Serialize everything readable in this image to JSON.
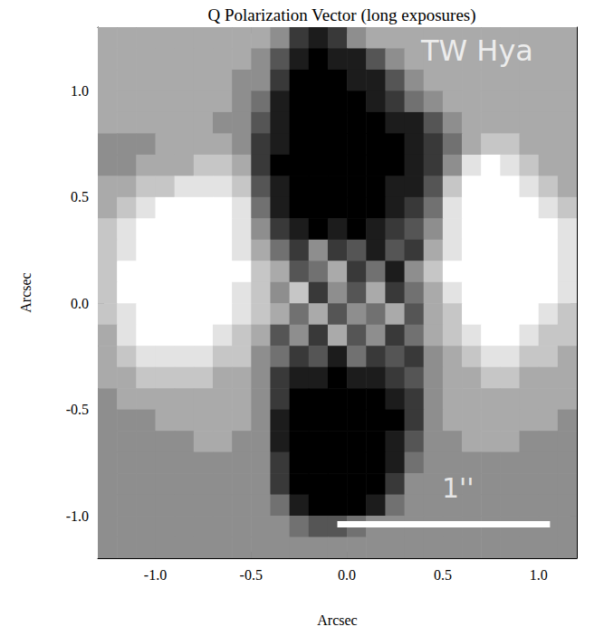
{
  "chart_data": {
    "type": "heatmap",
    "title": "Q Polarization Vector (long exposures)",
    "x_label": "Arcsec",
    "y_label": "Arcsec",
    "xlim": [
      -1.3,
      1.2
    ],
    "ylim": [
      -1.2,
      1.3
    ],
    "xticks": [
      {
        "value": -1,
        "label": "-1.0"
      },
      {
        "value": -0.5,
        "label": "-0.5"
      },
      {
        "value": 0,
        "label": "0.0"
      },
      {
        "value": 0.5,
        "label": "0.5"
      },
      {
        "value": 1,
        "label": "1.0"
      }
    ],
    "yticks": [
      {
        "value": -1,
        "label": "-1.0"
      },
      {
        "value": -0.5,
        "label": "-0.5"
      },
      {
        "value": 0,
        "label": "0.0"
      },
      {
        "value": 0.5,
        "label": "0.5"
      },
      {
        "value": 1,
        "label": "1.0"
      }
    ],
    "annotations": [
      {
        "text": "TW Hya",
        "x": 0.68,
        "y": 1.19
      },
      {
        "text": "1''",
        "x": 0.58,
        "y": -0.87
      }
    ],
    "scale_bar": {
      "x": [
        -0.05,
        1.06
      ],
      "y": -1.04
    },
    "color_range": [
      0,
      9
    ],
    "x": [
      -1.25,
      -1.15,
      -1.05,
      -0.95,
      -0.85,
      -0.75,
      -0.65,
      -0.55,
      -0.45,
      -0.35,
      -0.25,
      -0.15,
      -0.05,
      0.05,
      0.15,
      0.25,
      0.35,
      0.45,
      0.55,
      0.65,
      0.75,
      0.85,
      0.95,
      1.05,
      1.15
    ],
    "y": [
      1.25,
      1.15,
      1.05,
      0.95,
      0.85,
      0.75,
      0.65,
      0.55,
      0.45,
      0.35,
      0.25,
      0.15,
      0.05,
      -0.05,
      -0.15,
      -0.25,
      -0.35,
      -0.45,
      -0.55,
      -0.65,
      -0.75,
      -0.85,
      -0.95,
      -1.05,
      -1.15
    ],
    "cells": [
      [
        6,
        6,
        6,
        6,
        6,
        6,
        6,
        6,
        6,
        5,
        2,
        1,
        2,
        5,
        6,
        6,
        6,
        6,
        6,
        6,
        6,
        6,
        6,
        6,
        6
      ],
      [
        6,
        6,
        6,
        6,
        6,
        6,
        6,
        6,
        5,
        3,
        1,
        0,
        1,
        1,
        3,
        5,
        6,
        6,
        6,
        6,
        6,
        6,
        6,
        6,
        6
      ],
      [
        6,
        6,
        6,
        6,
        6,
        6,
        6,
        5,
        5,
        2,
        0,
        0,
        0,
        1,
        1,
        3,
        5,
        6,
        6,
        6,
        6,
        6,
        6,
        6,
        6
      ],
      [
        6,
        6,
        6,
        6,
        6,
        6,
        6,
        5,
        4,
        1,
        0,
        0,
        0,
        0,
        1,
        2,
        4,
        5,
        6,
        6,
        6,
        6,
        6,
        6,
        6
      ],
      [
        6,
        6,
        6,
        6,
        6,
        6,
        5,
        5,
        3,
        1,
        0,
        0,
        0,
        0,
        0,
        1,
        1,
        3,
        5,
        6,
        6,
        6,
        6,
        6,
        6
      ],
      [
        5,
        5,
        5,
        6,
        6,
        6,
        6,
        5,
        2,
        1,
        0,
        0,
        0,
        0,
        0,
        0,
        1,
        2,
        4,
        6,
        7,
        7,
        6,
        6,
        6
      ],
      [
        5,
        5,
        6,
        6,
        6,
        7,
        7,
        6,
        2,
        0,
        0,
        0,
        0,
        0,
        0,
        0,
        1,
        2,
        5,
        8,
        9,
        8,
        7,
        6,
        6
      ],
      [
        6,
        6,
        7,
        7,
        8,
        8,
        8,
        7,
        3,
        1,
        0,
        0,
        0,
        0,
        0,
        1,
        1,
        3,
        7,
        9,
        9,
        9,
        8,
        7,
        6
      ],
      [
        6,
        7,
        8,
        9,
        9,
        9,
        9,
        8,
        4,
        1,
        0,
        0,
        0,
        0,
        0,
        1,
        2,
        4,
        8,
        9,
        9,
        9,
        9,
        8,
        7
      ],
      [
        7,
        8,
        9,
        9,
        9,
        9,
        9,
        8,
        5,
        2,
        1,
        0,
        1,
        0,
        1,
        2,
        3,
        5,
        8,
        9,
        9,
        9,
        9,
        9,
        8
      ],
      [
        7,
        8,
        9,
        9,
        9,
        9,
        9,
        8,
        6,
        4,
        2,
        5,
        2,
        3,
        1,
        3,
        2,
        6,
        8,
        9,
        9,
        9,
        9,
        9,
        8
      ],
      [
        7,
        9,
        9,
        9,
        9,
        9,
        9,
        9,
        7,
        6,
        3,
        4,
        6,
        2,
        4,
        1,
        5,
        7,
        9,
        9,
        9,
        9,
        9,
        9,
        8
      ],
      [
        7,
        9,
        9,
        9,
        9,
        9,
        9,
        8,
        7,
        5,
        7,
        2,
        5,
        3,
        6,
        2,
        4,
        6,
        8,
        9,
        9,
        9,
        9,
        9,
        8
      ],
      [
        7,
        8,
        9,
        9,
        9,
        9,
        9,
        8,
        7,
        6,
        4,
        6,
        3,
        5,
        4,
        6,
        3,
        6,
        7,
        9,
        9,
        9,
        9,
        8,
        7
      ],
      [
        6,
        8,
        9,
        9,
        9,
        9,
        8,
        7,
        6,
        3,
        5,
        2,
        6,
        3,
        5,
        2,
        4,
        6,
        7,
        8,
        9,
        9,
        8,
        7,
        7
      ],
      [
        6,
        7,
        8,
        8,
        8,
        8,
        7,
        7,
        5,
        4,
        2,
        3,
        1,
        4,
        2,
        3,
        2,
        5,
        6,
        7,
        8,
        8,
        7,
        7,
        6
      ],
      [
        6,
        6,
        7,
        7,
        7,
        7,
        6,
        6,
        5,
        2,
        1,
        1,
        0,
        1,
        1,
        2,
        3,
        5,
        6,
        6,
        7,
        7,
        6,
        6,
        6
      ],
      [
        5,
        6,
        6,
        6,
        6,
        6,
        6,
        6,
        5,
        2,
        0,
        0,
        0,
        0,
        0,
        1,
        2,
        5,
        6,
        6,
        6,
        6,
        6,
        6,
        6
      ],
      [
        5,
        5,
        5,
        6,
        6,
        6,
        6,
        6,
        5,
        1,
        0,
        0,
        0,
        0,
        0,
        0,
        2,
        5,
        6,
        6,
        6,
        6,
        6,
        6,
        5
      ],
      [
        5,
        5,
        5,
        5,
        5,
        6,
        6,
        5,
        5,
        1,
        0,
        0,
        0,
        0,
        0,
        1,
        3,
        5,
        5,
        6,
        6,
        6,
        5,
        5,
        5
      ],
      [
        5,
        5,
        5,
        5,
        5,
        5,
        5,
        5,
        5,
        2,
        0,
        0,
        0,
        0,
        0,
        1,
        4,
        5,
        5,
        5,
        5,
        5,
        5,
        5,
        5
      ],
      [
        5,
        5,
        5,
        5,
        5,
        5,
        5,
        5,
        5,
        2,
        0,
        0,
        0,
        0,
        0,
        2,
        5,
        5,
        5,
        5,
        5,
        5,
        5,
        5,
        5
      ],
      [
        5,
        5,
        5,
        5,
        5,
        5,
        5,
        5,
        5,
        4,
        1,
        0,
        0,
        0,
        1,
        4,
        5,
        5,
        5,
        5,
        5,
        5,
        5,
        5,
        5
      ],
      [
        5,
        5,
        5,
        5,
        5,
        5,
        5,
        5,
        5,
        5,
        4,
        3,
        3,
        4,
        5,
        5,
        5,
        5,
        5,
        5,
        5,
        5,
        5,
        5,
        5
      ],
      [
        5,
        5,
        5,
        5,
        5,
        5,
        5,
        5,
        5,
        5,
        5,
        5,
        5,
        5,
        5,
        5,
        5,
        5,
        5,
        5,
        5,
        5,
        5,
        5,
        5
      ]
    ]
  }
}
